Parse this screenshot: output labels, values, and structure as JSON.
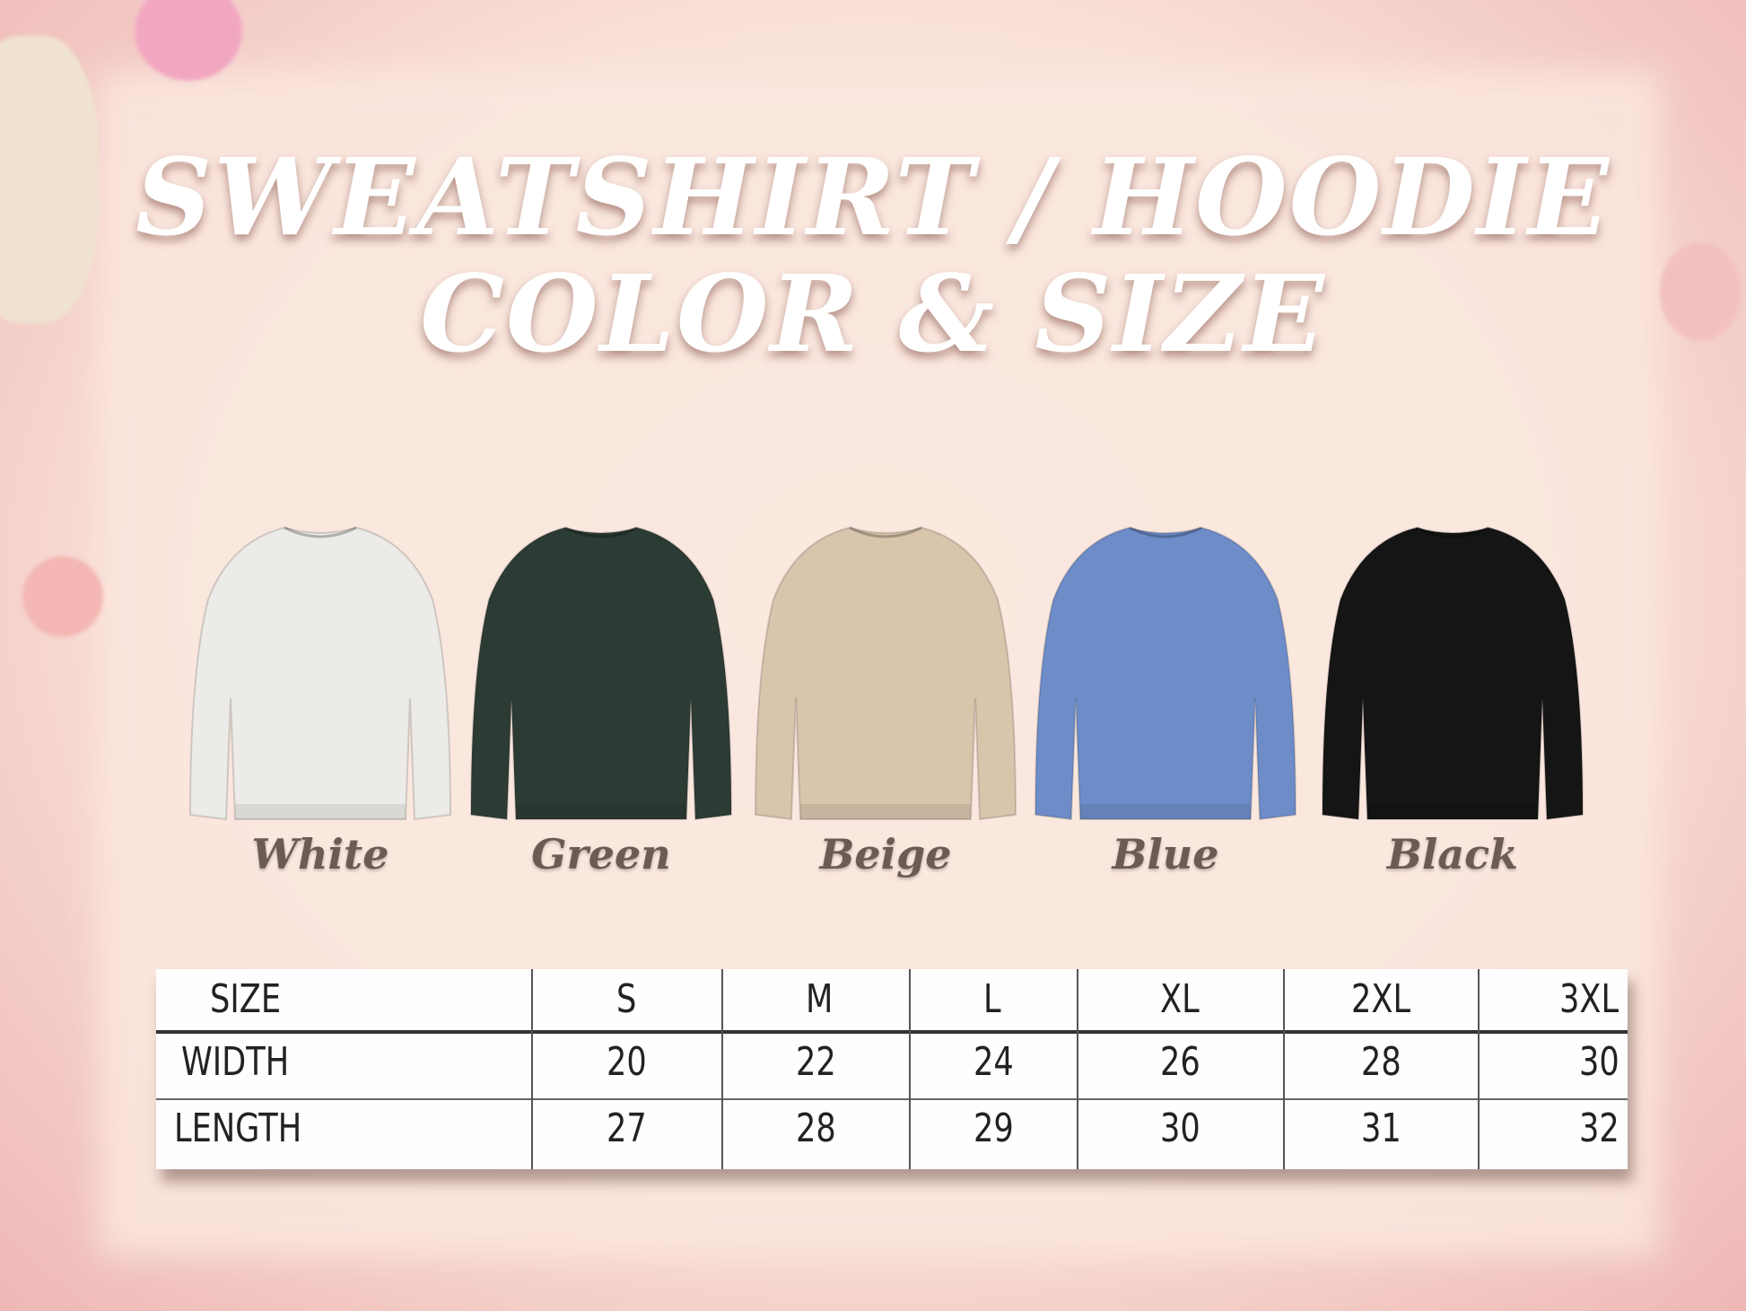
{
  "title": {
    "line1": "SWEATSHIRT / HOODIE",
    "line2": "COLOR & SIZE"
  },
  "colors": [
    {
      "name": "White",
      "hex": "#ecebe8"
    },
    {
      "name": "Green",
      "hex": "#2d3b35"
    },
    {
      "name": "Beige",
      "hex": "#d9c4ac"
    },
    {
      "name": "Blue",
      "hex": "#6d8cc8"
    },
    {
      "name": "Black",
      "hex": "#151515"
    }
  ],
  "size_table": {
    "headers": [
      "SIZE",
      "S",
      "M",
      "L",
      "XL",
      "2XL",
      "3XL"
    ],
    "rows": [
      [
        "WIDTH",
        "20",
        "22",
        "24",
        "26",
        "28",
        "30"
      ],
      [
        "LENGTH",
        "27",
        "28",
        "29",
        "30",
        "31",
        "32"
      ]
    ]
  }
}
